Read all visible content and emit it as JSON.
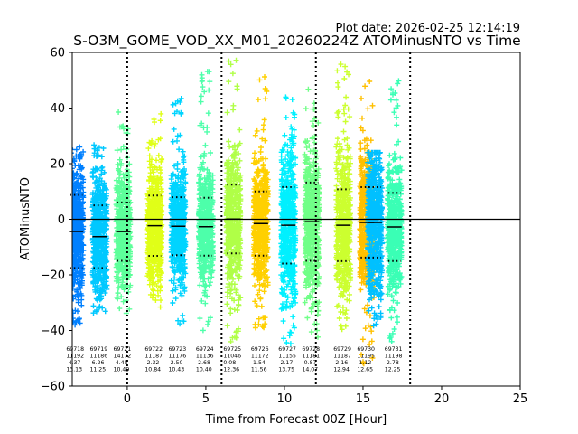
{
  "chart_data": {
    "type": "scatter",
    "plot_date": "Plot date: 2026-02-25 12:14:19",
    "title": "S-O3M_GOME_VOD_XX_M01_20260224Z ATOMinusNTO vs Time",
    "xlabel": "Time from Forecast 00Z [Hour]",
    "ylabel": "ATOMinusNTO",
    "xlim": [
      -3.5,
      25
    ],
    "ylim": [
      -60,
      60
    ],
    "xticks": [
      0,
      5,
      10,
      15,
      20,
      25
    ],
    "yticks": [
      -60,
      -40,
      -20,
      0,
      20,
      40,
      60
    ],
    "xtick_labels": [
      "0",
      "5",
      "10",
      "15",
      "20",
      "25"
    ],
    "ytick_labels": [
      "−60",
      "−40",
      "−20",
      "0",
      "20",
      "40",
      "60"
    ],
    "vlines": [
      0,
      6,
      12,
      18
    ],
    "hline": 0,
    "bins": [
      {
        "x": -3.25,
        "id": "69718",
        "n": "11192",
        "mean": -4.37,
        "mean_label": "-4.37",
        "sd": 13.13,
        "sd_label": "13.13",
        "ymin": -38,
        "ymax": 26,
        "color": "#0080ff"
      },
      {
        "x": -1.75,
        "id": "69719",
        "n": "11186",
        "mean": -6.26,
        "mean_label": "-6.26",
        "sd": 11.25,
        "sd_label": "11.25",
        "ymin": -36,
        "ymax": 27,
        "color": "#00c8ff"
      },
      {
        "x": -0.25,
        "id": "69721",
        "n": "14172",
        "mean": -4.45,
        "mean_label": "-4.45",
        "sd": 10.49,
        "sd_label": "10.49",
        "ymin": -34,
        "ymax": 40,
        "color": "#5dff9a"
      },
      {
        "x": 1.75,
        "id": "69722",
        "n": "11187",
        "mean": -2.32,
        "mean_label": "-2.32",
        "sd": 10.84,
        "sd_label": "10.84",
        "ymin": -35,
        "ymax": 38,
        "color": "#e0ff17"
      },
      {
        "x": 3.25,
        "id": "69723",
        "n": "11176",
        "mean": -2.5,
        "mean_label": "-2.50",
        "sd": 10.43,
        "sd_label": "10.43",
        "ymin": -38,
        "ymax": 46,
        "color": "#00d4ff"
      },
      {
        "x": 5.0,
        "id": "69724",
        "n": "11136",
        "mean": -2.68,
        "mean_label": "-2.68",
        "sd": 10.4,
        "sd_label": "10.40",
        "ymin": -40,
        "ymax": 55,
        "color": "#4dffaa"
      },
      {
        "x": 6.75,
        "id": "69725",
        "n": "11046",
        "mean": 0.08,
        "mean_label": "0.08",
        "sd": 12.36,
        "sd_label": "12.36",
        "ymin": -45,
        "ymax": 58,
        "color": "#b0ff47"
      },
      {
        "x": 8.5,
        "id": "69726",
        "n": "11172",
        "mean": -1.54,
        "mean_label": "-1.54",
        "sd": 11.56,
        "sd_label": "11.56",
        "ymin": -40,
        "ymax": 55,
        "color": "#ffd000"
      },
      {
        "x": 10.25,
        "id": "69727",
        "n": "11155",
        "mean": -2.17,
        "mean_label": "-2.17",
        "sd": 13.75,
        "sd_label": "13.75",
        "ymin": -45,
        "ymax": 45,
        "color": "#00f0ff"
      },
      {
        "x": 11.75,
        "id": "69728",
        "n": "11181",
        "mean": -0.87,
        "mean_label": "-0.87",
        "sd": 14.07,
        "sd_label": "14.07",
        "ymin": -45,
        "ymax": 48,
        "color": "#70ff87"
      },
      {
        "x": 13.75,
        "id": "69729",
        "n": "11187",
        "mean": -2.16,
        "mean_label": "-2.16",
        "sd": 12.94,
        "sd_label": "12.94",
        "ymin": -40,
        "ymax": 56,
        "color": "#ccff2f"
      },
      {
        "x": 15.25,
        "id": "69730",
        "n": "11195",
        "mean": -1.12,
        "mean_label": "-1.12",
        "sd": 12.65,
        "sd_label": "12.65",
        "ymin": -55,
        "ymax": 50,
        "color": "#ffc000"
      },
      {
        "x": 15.75,
        "id": "",
        "n": "",
        "mean": -1.12,
        "mean_label": "",
        "sd": 12.65,
        "sd_label": "",
        "ymin": -40,
        "ymax": 24,
        "color": "#00c0ff"
      },
      {
        "x": 17.0,
        "id": "69731",
        "n": "11198",
        "mean": -2.78,
        "mean_label": "-2.78",
        "sd": 12.25,
        "sd_label": "12.25",
        "ymin": -45,
        "ymax": 55,
        "color": "#3affb5"
      }
    ]
  }
}
